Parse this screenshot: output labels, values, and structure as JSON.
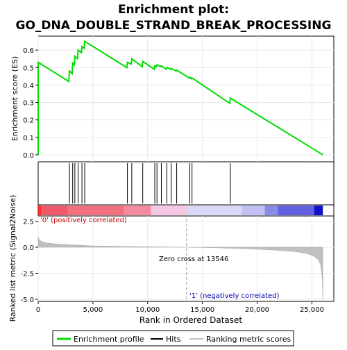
{
  "chart_data": {
    "type": "line",
    "title_line1": "Enrichment plot:",
    "title_line2": "GO_DNA_DOUBLE_STRAND_BREAK_PROCESSING",
    "xlabel": "Rank in Ordered Dataset",
    "es_ylabel": "Enrichment score (ES)",
    "metric_ylabel": "Ranked list metric (Signal2Noise)",
    "xlim": [
      0,
      27000
    ],
    "x_ticks": [
      0,
      5000,
      10000,
      15000,
      20000,
      25000
    ],
    "x_tick_labels": [
      "0",
      "5,000",
      "10,000",
      "15,000",
      "20,000",
      "25,000"
    ],
    "es_ylim": [
      -0.04,
      0.68
    ],
    "es_ticks": [
      0.0,
      0.1,
      0.2,
      0.3,
      0.4,
      0.5,
      0.6
    ],
    "es_tick_labels": [
      "0.0",
      "0.1",
      "0.2",
      "0.3",
      "0.4",
      "0.5",
      "0.6"
    ],
    "metric_ylim": [
      -5.2,
      3.0
    ],
    "metric_ticks": [
      2.5,
      0.0,
      -2.5,
      -5.0
    ],
    "metric_tick_labels": [
      "2.5",
      "0.0",
      "-2.5",
      "-5.0"
    ],
    "enrichment_profile": {
      "x": [
        0,
        1,
        2800,
        2850,
        3100,
        3150,
        3300,
        3350,
        3600,
        3650,
        3950,
        4000,
        4200,
        4250,
        8100,
        8150,
        8500,
        8550,
        9500,
        9550,
        10600,
        10650,
        10800,
        10850,
        11200,
        11250,
        11700,
        11750,
        12100,
        12150,
        12600,
        12650,
        13800,
        13850,
        14000,
        14050,
        17500,
        17550,
        26000
      ],
      "y": [
        0.0,
        0.53,
        0.42,
        0.48,
        0.465,
        0.525,
        0.515,
        0.565,
        0.55,
        0.6,
        0.585,
        0.62,
        0.61,
        0.65,
        0.5,
        0.53,
        0.52,
        0.55,
        0.505,
        0.535,
        0.49,
        0.51,
        0.505,
        0.515,
        0.505,
        0.51,
        0.49,
        0.5,
        0.49,
        0.495,
        0.48,
        0.485,
        0.44,
        0.445,
        0.435,
        0.44,
        0.295,
        0.325,
        0.0
      ]
    },
    "hits": [
      2850,
      3150,
      3350,
      3650,
      4000,
      4250,
      8150,
      8550,
      9550,
      10650,
      10850,
      11250,
      11750,
      12150,
      12650,
      13850,
      14050,
      17550
    ],
    "metric_curve": {
      "x": [
        0,
        100,
        300,
        700,
        1500,
        3000,
        5000,
        8000,
        11000,
        13546,
        16000,
        19000,
        21500,
        23500,
        24500,
        25200,
        25600,
        25800,
        25950,
        26000
      ],
      "y": [
        1.0,
        0.7,
        0.55,
        0.42,
        0.32,
        0.22,
        0.13,
        0.07,
        0.03,
        0.0,
        -0.05,
        -0.14,
        -0.26,
        -0.42,
        -0.6,
        -0.85,
        -1.2,
        -1.7,
        -3.0,
        -5.0
      ]
    },
    "colorbar_segments": [
      {
        "from": 0,
        "to": 300,
        "color": "#ff3030"
      },
      {
        "from": 300,
        "to": 2700,
        "color": "#ee5a6a"
      },
      {
        "from": 2700,
        "to": 7800,
        "color": "#f07080"
      },
      {
        "from": 7800,
        "to": 10300,
        "color": "#f48aa0"
      },
      {
        "from": 10300,
        "to": 13600,
        "color": "#f4c8e4"
      },
      {
        "from": 13600,
        "to": 18600,
        "color": "#d8d8f8"
      },
      {
        "from": 18600,
        "to": 20700,
        "color": "#c0c0f4"
      },
      {
        "from": 20700,
        "to": 21900,
        "color": "#8a8ae8"
      },
      {
        "from": 21900,
        "to": 25200,
        "color": "#6060e0"
      },
      {
        "from": 25200,
        "to": 26000,
        "color": "#1010c8"
      }
    ],
    "zero_cross": 13546,
    "zero_cross_label": "Zero cross at 13546",
    "pos_label": "'0' (positively correlated)",
    "neg_label": "'1' (negatively correlated)",
    "colors": {
      "profile": "#00dd00",
      "hits": "#000000",
      "metric_fill": "#c0c0c0",
      "pos_text": "#cc0000",
      "neg_text": "#0000aa",
      "grid": "#e8e8e8",
      "axis": "#000000"
    },
    "legend": {
      "profile_label": "Enrichment profile",
      "hits_label": "Hits",
      "metric_label": "Ranking metric scores"
    }
  }
}
